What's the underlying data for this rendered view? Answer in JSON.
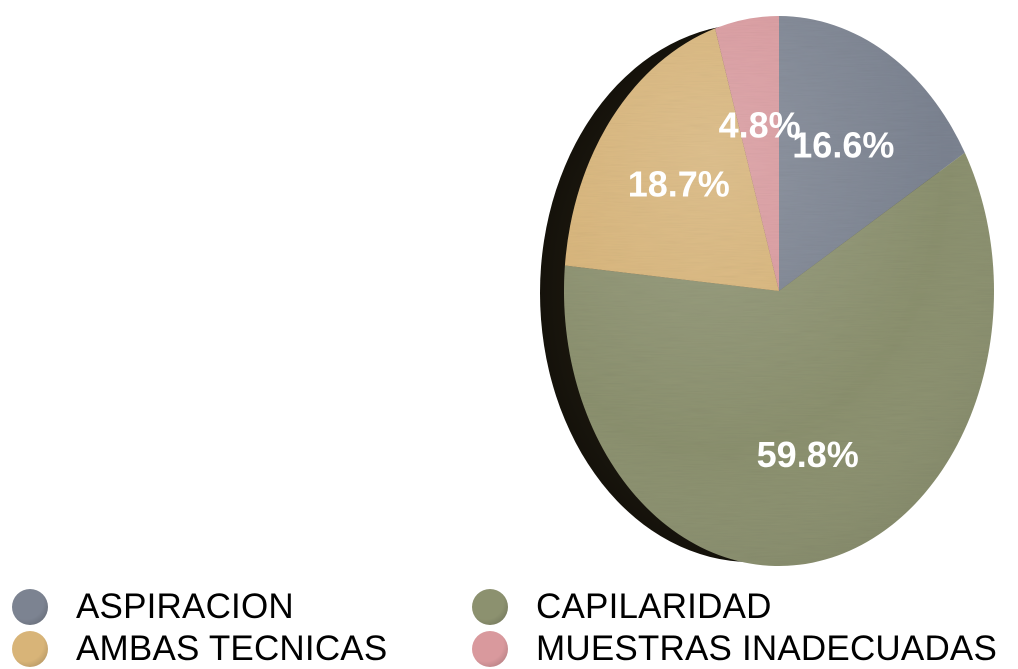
{
  "chart_data": {
    "type": "pie",
    "categories": [
      "ASPIRACION",
      "CAPILARIDAD",
      "AMBAS TECNICAS",
      "MUESTRAS INADECUADAS"
    ],
    "values": [
      16.6,
      59.8,
      18.7,
      4.8
    ],
    "value_labels": [
      "16.6%",
      "59.8%",
      "18.7%",
      "4.8%"
    ],
    "colors": [
      "#7c8391",
      "#8c916f",
      "#d8b478",
      "#d9999d"
    ],
    "legend_position": "bottom",
    "start_angle": "top",
    "direction": "clockwise",
    "style": "3d"
  }
}
